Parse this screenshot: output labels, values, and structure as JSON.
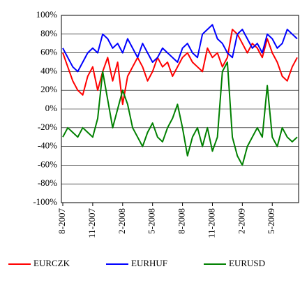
{
  "chart_data": {
    "type": "line",
    "categories": [
      "8-2007",
      null,
      null,
      null,
      null,
      null,
      "11-2007",
      null,
      null,
      null,
      null,
      null,
      "2-2008",
      null,
      null,
      null,
      null,
      null,
      "5-2008",
      null,
      null,
      null,
      null,
      null,
      "8-2008",
      null,
      null,
      null,
      null,
      null,
      "11-2008",
      null,
      null,
      null,
      null,
      null,
      "2-2009",
      null,
      null,
      null,
      null,
      null,
      "5-2009",
      null,
      null,
      null,
      null,
      null
    ],
    "series": [
      {
        "name": "EURCZK",
        "color": "#ff0000",
        "values": [
          60,
          45,
          30,
          20,
          15,
          35,
          45,
          20,
          40,
          55,
          30,
          50,
          5,
          35,
          45,
          55,
          45,
          30,
          40,
          55,
          45,
          50,
          35,
          45,
          55,
          60,
          50,
          45,
          40,
          65,
          55,
          60,
          45,
          55,
          85,
          80,
          70,
          60,
          70,
          65,
          55,
          75,
          60,
          50,
          35,
          30,
          45,
          55
        ]
      },
      {
        "name": "EURHUF",
        "color": "#0000ff",
        "values": [
          65,
          55,
          45,
          40,
          50,
          60,
          65,
          60,
          80,
          75,
          65,
          70,
          60,
          75,
          65,
          55,
          70,
          60,
          50,
          55,
          65,
          60,
          55,
          50,
          65,
          70,
          60,
          55,
          80,
          85,
          90,
          75,
          70,
          60,
          55,
          80,
          85,
          75,
          65,
          70,
          60,
          80,
          75,
          65,
          70,
          85,
          80,
          75
        ]
      },
      {
        "name": "EURUSD",
        "color": "#008000",
        "values": [
          -30,
          -20,
          -25,
          -30,
          -20,
          -25,
          -30,
          -10,
          40,
          10,
          -20,
          0,
          20,
          5,
          -20,
          -30,
          -40,
          -25,
          -15,
          -30,
          -35,
          -20,
          -10,
          5,
          -20,
          -50,
          -30,
          -20,
          -40,
          -20,
          -45,
          -30,
          40,
          50,
          -30,
          -50,
          -60,
          -40,
          -30,
          -20,
          -30,
          25,
          -30,
          -40,
          -20,
          -30,
          -35,
          -30
        ]
      }
    ],
    "ylim": [
      -100,
      100
    ],
    "yticks": [
      {
        "value": -100,
        "label": "-100%"
      },
      {
        "value": -80,
        "label": "-80%"
      },
      {
        "value": -60,
        "label": "-60%"
      },
      {
        "value": -40,
        "label": "-40%"
      },
      {
        "value": -20,
        "label": "-20%"
      },
      {
        "value": 0,
        "label": "0%"
      },
      {
        "value": 20,
        "label": "20%"
      },
      {
        "value": 40,
        "label": "40%"
      },
      {
        "value": 60,
        "label": "60%"
      },
      {
        "value": 80,
        "label": "80%"
      },
      {
        "value": 100,
        "label": "100%"
      }
    ],
    "grid": true,
    "legend": "bottom"
  }
}
